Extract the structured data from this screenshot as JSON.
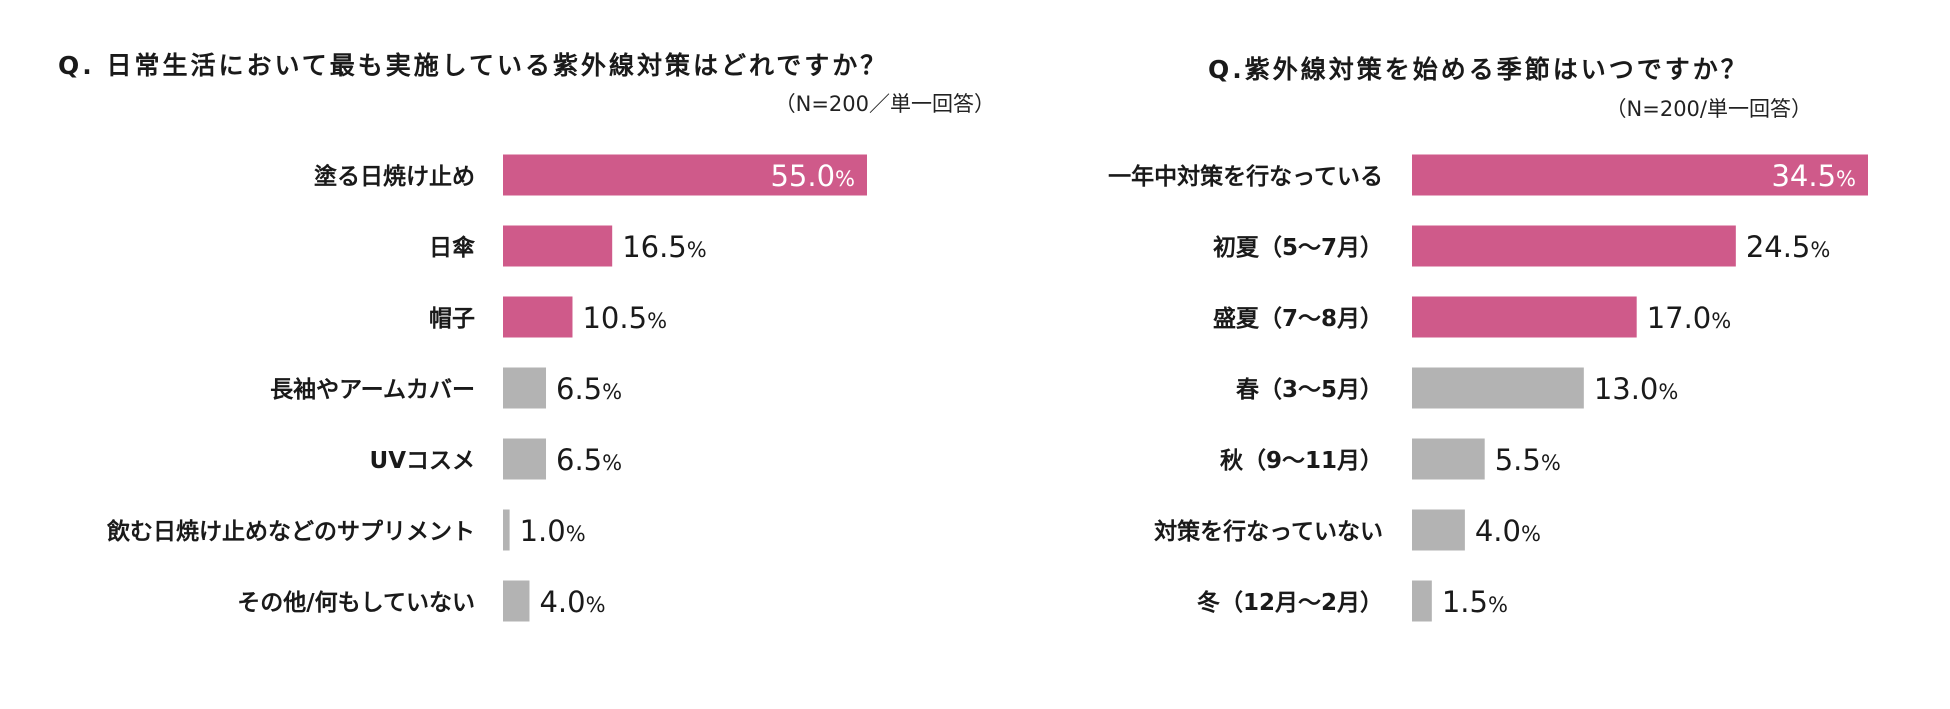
{
  "chart_data": [
    {
      "type": "bar",
      "orientation": "horizontal",
      "title": "Q. 日常生活において最も実施している紫外線対策はどれですか？",
      "subtitle": "（N=200／単一回答）",
      "categories": [
        "塗る日焼け止め",
        "日傘",
        "帽子",
        "長袖やアームカバー",
        "UVコスメ",
        "飲む日焼け止めなどのサプリメント",
        "その他/何もしていない"
      ],
      "values": [
        55.0,
        16.5,
        10.5,
        6.5,
        6.5,
        1.0,
        4.0
      ],
      "labels_num": [
        "55.0",
        "16.5",
        "10.5",
        "6.5",
        "6.5",
        "1.0",
        "4.0"
      ],
      "label_unit": "%",
      "highlight_count": 3,
      "colors": {
        "highlight": "#cf5a8a",
        "other": "#b3b3b3",
        "inside_label": "#ffffff",
        "outside_label": "#1a1a1a"
      },
      "xlim": [
        0,
        55
      ],
      "grid": false,
      "legend": "none"
    },
    {
      "type": "bar",
      "orientation": "horizontal",
      "title": "Q.紫外線対策を始める季節はいつですか？",
      "subtitle": "（N=200/単一回答）",
      "categories": [
        "一年中対策を行なっている",
        "初夏（5～7月）",
        "盛夏（7～8月）",
        "春（3～5月）",
        "秋（9～11月）",
        "対策を行なっていない",
        "冬（12月～2月）"
      ],
      "values": [
        34.5,
        24.5,
        17.0,
        13.0,
        5.5,
        4.0,
        1.5
      ],
      "labels_num": [
        "34.5",
        "24.5",
        "17.0",
        "13.0",
        "5.5",
        "4.0",
        "1.5"
      ],
      "label_unit": "%",
      "highlight_count": 3,
      "colors": {
        "highlight": "#cf5a8a",
        "other": "#b3b3b3",
        "inside_label": "#ffffff",
        "outside_label": "#1a1a1a"
      },
      "xlim": [
        0,
        34.5
      ],
      "grid": false,
      "legend": "none"
    }
  ]
}
